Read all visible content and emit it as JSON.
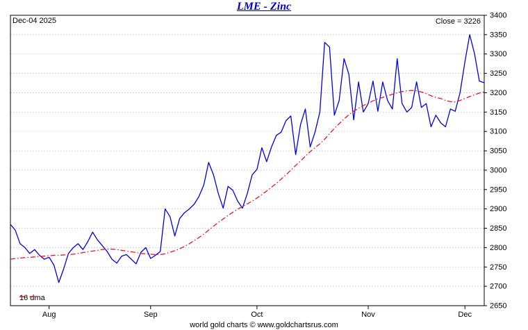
{
  "header": {
    "title": "LME - Zinc",
    "date_label": "Dec-04  2025",
    "close_label": "Close = 3226"
  },
  "legend": {
    "dma_label": "16 dma"
  },
  "footer": {
    "credit": "world gold charts © www.goldchartsrus.com"
  },
  "colors": {
    "title": "#0000cc",
    "price_line": "#0000dd",
    "dma_line": "#ee1122",
    "grid": "#bbbbbb",
    "border": "#000000"
  },
  "chart_data": {
    "type": "line",
    "title": "LME - Zinc",
    "xlabel": "",
    "ylabel": "",
    "ylim": [
      2650,
      3400
    ],
    "grid": true,
    "legend_position": "bottom-left",
    "y_ticks": [
      3400,
      3350,
      3300,
      3250,
      3200,
      3150,
      3100,
      3050,
      3000,
      2950,
      2900,
      2850,
      2800,
      2750,
      2700,
      2650
    ],
    "x_months": [
      {
        "label": "Aug",
        "index": 8
      },
      {
        "label": "Sep",
        "index": 29
      },
      {
        "label": "Oct",
        "index": 51
      },
      {
        "label": "Nov",
        "index": 74
      },
      {
        "label": "Dec",
        "index": 94
      }
    ],
    "series": [
      {
        "name": "price",
        "color": "#0000dd",
        "dash": false,
        "values": [
          2860,
          2845,
          2810,
          2800,
          2785,
          2795,
          2780,
          2770,
          2775,
          2755,
          2710,
          2745,
          2785,
          2800,
          2810,
          2795,
          2815,
          2840,
          2820,
          2805,
          2790,
          2770,
          2760,
          2778,
          2782,
          2770,
          2758,
          2788,
          2800,
          2772,
          2780,
          2790,
          2900,
          2880,
          2830,
          2875,
          2890,
          2900,
          2912,
          2932,
          2962,
          3020,
          2988,
          2940,
          2902,
          2958,
          2948,
          2920,
          2902,
          2940,
          2988,
          3002,
          3058,
          3022,
          3060,
          3090,
          3098,
          3128,
          3140,
          3040,
          3118,
          3158,
          3060,
          3098,
          3150,
          3330,
          3318,
          3142,
          3180,
          3288,
          3248,
          3130,
          3228,
          3150,
          3172,
          3230,
          3152,
          3228,
          3180,
          3158,
          3288,
          3172,
          3150,
          3162,
          3228,
          3162,
          3172,
          3112,
          3142,
          3122,
          3112,
          3158,
          3152,
          3200,
          3280,
          3350,
          3300,
          3230,
          3226
        ]
      },
      {
        "name": "16 dma",
        "color": "#ee1122",
        "dash": true,
        "values": [
          2770,
          2772,
          2773,
          2774,
          2775,
          2776,
          2777,
          2778,
          2779,
          2780,
          2780,
          2781,
          2782,
          2783,
          2785,
          2787,
          2789,
          2791,
          2793,
          2795,
          2796,
          2796,
          2795,
          2793,
          2791,
          2789,
          2787,
          2785,
          2784,
          2783,
          2782,
          2782,
          2784,
          2788,
          2792,
          2797,
          2803,
          2810,
          2818,
          2826,
          2835,
          2845,
          2855,
          2865,
          2874,
          2883,
          2891,
          2899,
          2906,
          2913,
          2920,
          2928,
          2937,
          2946,
          2956,
          2966,
          2977,
          2988,
          3000,
          3012,
          3024,
          3036,
          3048,
          3058,
          3068,
          3080,
          3094,
          3108,
          3120,
          3132,
          3143,
          3152,
          3160,
          3167,
          3173,
          3179,
          3184,
          3188,
          3192,
          3196,
          3200,
          3203,
          3205,
          3206,
          3205,
          3202,
          3198,
          3192,
          3188,
          3185,
          3180,
          3177,
          3176,
          3180,
          3185,
          3190,
          3195,
          3199,
          3202
        ]
      }
    ]
  }
}
